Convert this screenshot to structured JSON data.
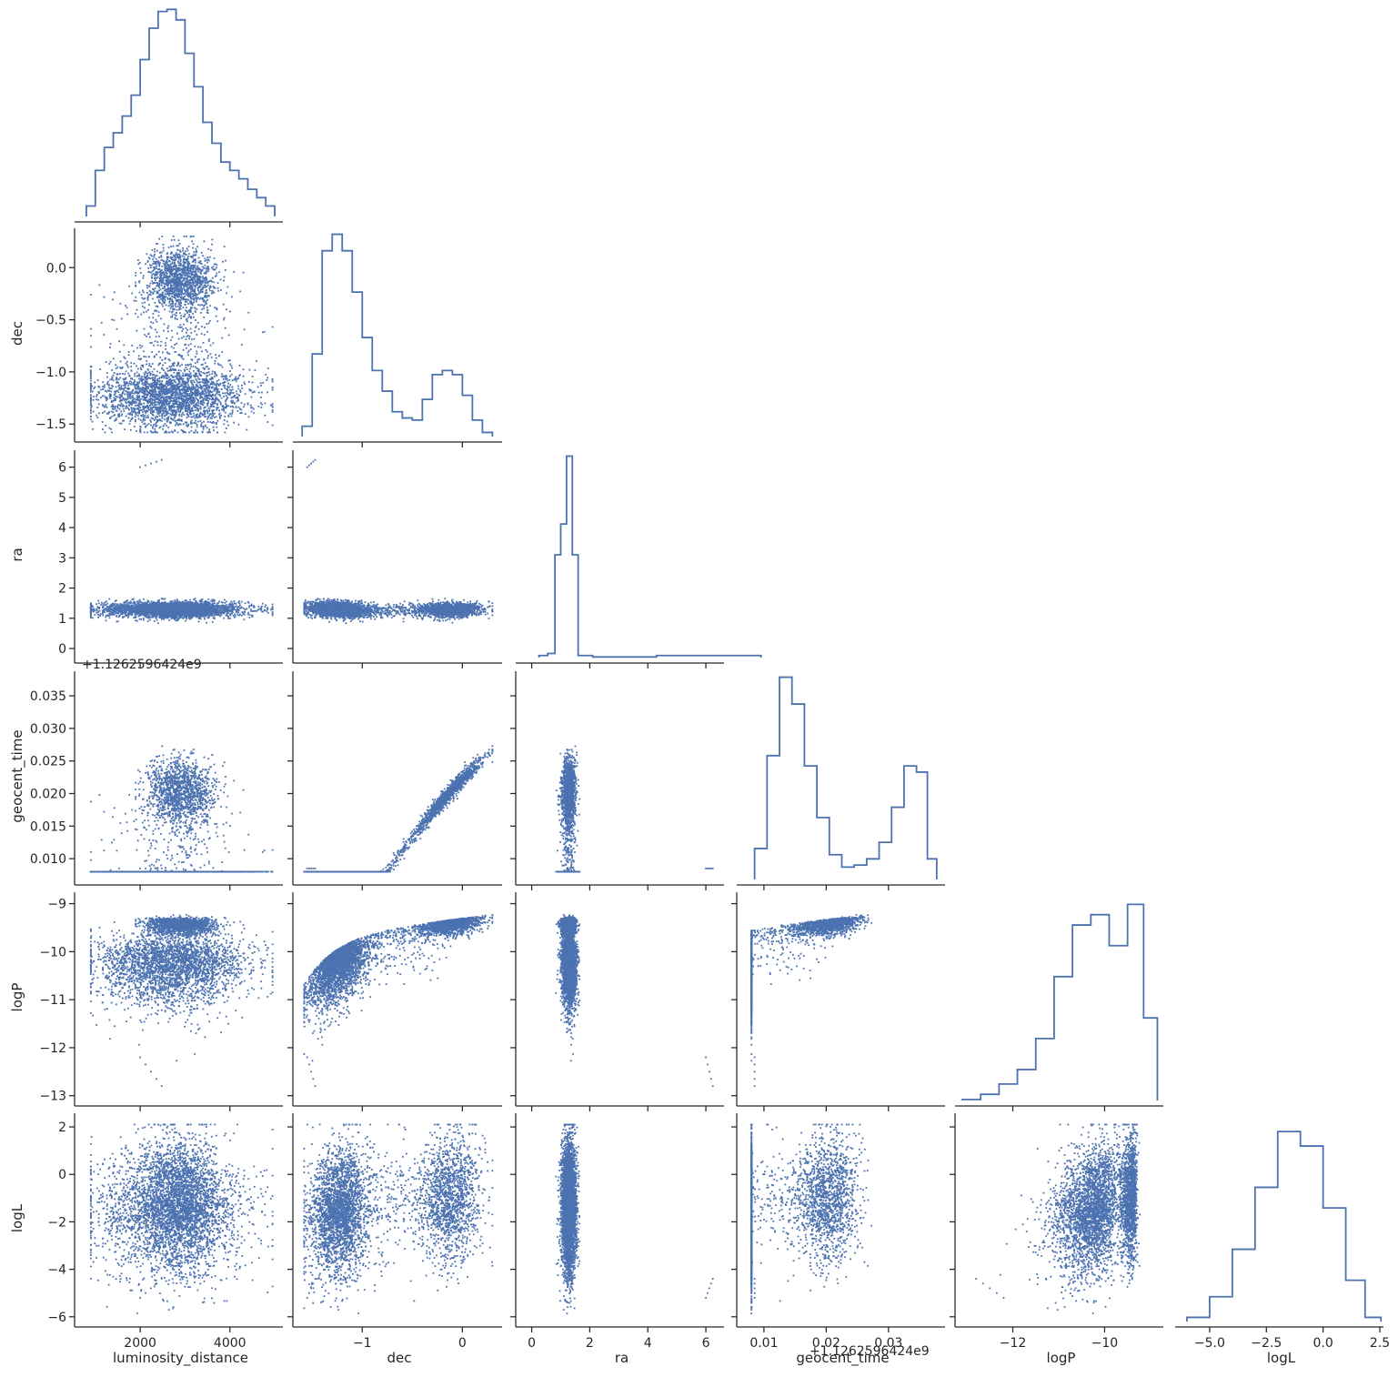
{
  "chart_data": {
    "type": "scatter",
    "title": "",
    "variables": [
      {
        "name": "luminosity_distance",
        "range": [
          700,
          5100
        ],
        "ticks": [
          2000,
          4000
        ],
        "tick_labels": [
          "2000",
          "4000"
        ],
        "offset_label": ""
      },
      {
        "name": "dec",
        "range": [
          -1.62,
          0.36
        ],
        "ticks": [
          -1.5,
          -1.0,
          -0.5,
          0.0
        ],
        "tick_labels": [
          "−1.5",
          "−1.0",
          "−0.5",
          "0.0"
        ],
        "hist_ticks": [
          -1,
          0
        ],
        "hist_tick_labels": [
          "−1",
          "0"
        ],
        "offset_label": ""
      },
      {
        "name": "ra",
        "range": [
          -0.3,
          6.5
        ],
        "ticks": [
          0,
          1,
          2,
          3,
          4,
          5,
          6
        ],
        "tick_labels": [
          "0",
          "1",
          "2",
          "3",
          "4",
          "5",
          "6"
        ],
        "hist_ticks": [
          0,
          2,
          4,
          6
        ],
        "hist_tick_labels": [
          "0",
          "2",
          "4",
          "6"
        ],
        "offset_label": ""
      },
      {
        "name": "geocent_time",
        "range": [
          0.0068,
          0.0385
        ],
        "ticks": [
          0.01,
          0.015,
          0.02,
          0.025,
          0.03,
          0.035
        ],
        "tick_labels": [
          "0.010",
          "0.015",
          "0.020",
          "0.025",
          "0.030",
          "0.035"
        ],
        "hist_ticks": [
          0.01,
          0.02,
          0.03
        ],
        "hist_tick_labels": [
          "0.01",
          "0.02",
          "0.03"
        ],
        "offset_label": "+1.1262596424e9"
      },
      {
        "name": "logP",
        "range": [
          -13.1,
          -8.8
        ],
        "ticks": [
          -13,
          -12,
          -11,
          -10,
          -9
        ],
        "tick_labels": [
          "−13",
          "−12",
          "−11",
          "−10",
          "−9"
        ],
        "hist_ticks": [
          -12,
          -10
        ],
        "hist_tick_labels": [
          "−12",
          "−10"
        ],
        "offset_label": ""
      },
      {
        "name": "logL",
        "range": [
          -6.2,
          2.5
        ],
        "ticks": [
          -6,
          -4,
          -2,
          0,
          2
        ],
        "tick_labels": [
          "−6",
          "−4",
          "−2",
          "0",
          "2"
        ],
        "hist_ticks": [
          -5.0,
          -2.5,
          0.0,
          2.5
        ],
        "hist_tick_labels": [
          "−5.0",
          "−2.5",
          "0.0",
          "2.5"
        ],
        "offset_label": ""
      }
    ],
    "histograms": [
      {
        "variable": "luminosity_distance",
        "bin_centers": [
          900,
          1100,
          1300,
          1500,
          1700,
          1900,
          2100,
          2300,
          2500,
          2700,
          2900,
          3100,
          3300,
          3500,
          3700,
          3900,
          4100,
          4300,
          4500,
          4700,
          4900
        ],
        "counts": [
          0.05,
          0.22,
          0.33,
          0.4,
          0.48,
          0.58,
          0.75,
          0.9,
          0.98,
          0.99,
          0.94,
          0.78,
          0.62,
          0.45,
          0.35,
          0.26,
          0.22,
          0.18,
          0.13,
          0.09,
          0.05
        ]
      },
      {
        "variable": "dec",
        "bin_centers": [
          -1.55,
          -1.45,
          -1.35,
          -1.25,
          -1.15,
          -1.05,
          -0.95,
          -0.85,
          -0.75,
          -0.65,
          -0.55,
          -0.45,
          -0.35,
          -0.25,
          -0.15,
          -0.05,
          0.05,
          0.15,
          0.25
        ],
        "counts": [
          0.05,
          0.4,
          0.9,
          0.98,
          0.9,
          0.7,
          0.48,
          0.32,
          0.22,
          0.12,
          0.09,
          0.08,
          0.18,
          0.3,
          0.32,
          0.3,
          0.2,
          0.08,
          0.02
        ]
      },
      {
        "variable": "ra",
        "bin_centers": [
          0.4,
          0.7,
          0.9,
          1.1,
          1.3,
          1.5,
          1.7,
          2.5,
          6.1
        ],
        "counts": [
          0.01,
          0.02,
          0.5,
          0.65,
          0.98,
          0.5,
          0.01,
          0.003,
          0.01
        ]
      },
      {
        "variable": "geocent_time",
        "bin_centers": [
          0.0095,
          0.0115,
          0.0135,
          0.0155,
          0.0175,
          0.0195,
          0.0215,
          0.0235,
          0.0255,
          0.0275,
          0.0295,
          0.0315,
          0.0335,
          0.0355,
          0.037
        ],
        "counts": [
          0.15,
          0.6,
          0.98,
          0.85,
          0.55,
          0.3,
          0.12,
          0.06,
          0.07,
          0.1,
          0.18,
          0.35,
          0.55,
          0.52,
          0.1
        ]
      },
      {
        "variable": "logP",
        "bin_centers": [
          -12.9,
          -12.5,
          -12.1,
          -11.7,
          -11.3,
          -10.9,
          -10.5,
          -10.1,
          -9.7,
          -9.3,
          -9.0
        ],
        "counts": [
          0.005,
          0.03,
          0.08,
          0.15,
          0.3,
          0.6,
          0.85,
          0.9,
          0.75,
          0.95,
          0.4
        ]
      },
      {
        "variable": "logL",
        "bin_centers": [
          -5.5,
          -4.5,
          -3.5,
          -2.5,
          -1.5,
          -0.5,
          0.5,
          1.5,
          2.2
        ],
        "counts": [
          0.02,
          0.12,
          0.35,
          0.65,
          0.92,
          0.85,
          0.55,
          0.2,
          0.02
        ]
      }
    ],
    "scatter_style": {
      "color": "#4c72b0"
    },
    "hist_style": {
      "color": "#4c72b0"
    }
  }
}
